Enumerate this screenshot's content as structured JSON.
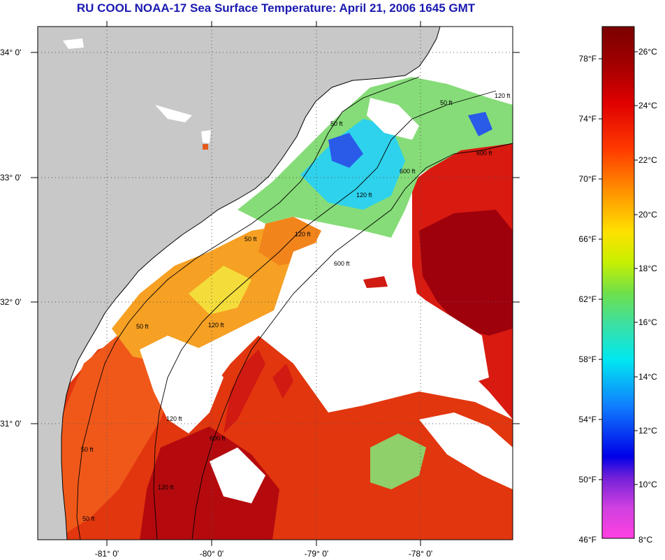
{
  "title": "RU COOL  NOAA-17  Sea Surface Temperature:  April 21, 2006 1645 GMT",
  "map": {
    "lat_labels": [
      "34° 0'",
      "33° 0'",
      "32° 0'",
      "31° 0'"
    ],
    "lon_labels": [
      "-81° 0'",
      "-80° 0'",
      "-79° 0'",
      "-78° 0'"
    ],
    "contour_labels": [
      "50 ft",
      "120 ft",
      "600 ft",
      "50 ft",
      "120 ft",
      "600 ft",
      "50 ft",
      "120 ft",
      "600 ft",
      "50 ft",
      "120 ft",
      "600 ft",
      "50 ft",
      "120 ft",
      "50 ft",
      "120 ft"
    ],
    "colors": {
      "land": "#c8c8c8",
      "cloud": "#ffffff",
      "warm": "#d81b10",
      "hot": "#a0000e",
      "orange": "#f26a14",
      "yellow": "#f6e23a",
      "green": "#7fe07a",
      "cyan": "#29d4ef",
      "blue": "#1e4de6"
    }
  },
  "colorbar": {
    "f_labels": [
      "78°F",
      "74°F",
      "70°F",
      "66°F",
      "62°F",
      "58°F",
      "54°F",
      "50°F",
      "46°F"
    ],
    "c_labels": [
      "26°C",
      "24°C",
      "22°C",
      "20°C",
      "18°C",
      "16°C",
      "14°C",
      "12°C",
      "10°C",
      "8°C"
    ]
  }
}
